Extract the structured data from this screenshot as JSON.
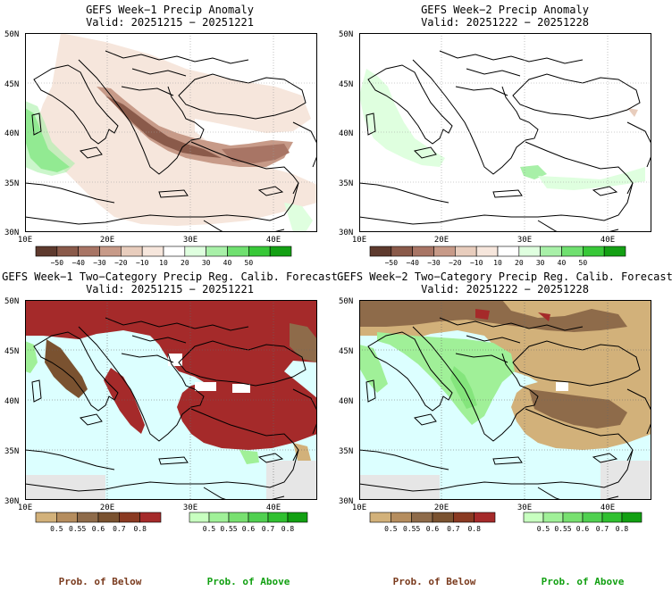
{
  "panels": [
    {
      "title": "GEFS Week−1 Precip Anomaly",
      "valid": "Valid: 20251215 − 20251221",
      "type": "anomaly",
      "lat_labels": [
        "50N",
        "45N",
        "40N",
        "35N",
        "30N"
      ],
      "lon_labels": [
        "10E",
        "20E",
        "30E",
        "40E"
      ]
    },
    {
      "title": "GEFS Week−2 Precip Anomaly",
      "valid": "Valid: 20251222 − 20251228",
      "type": "anomaly",
      "lat_labels": [
        "50N",
        "45N",
        "40N",
        "35N",
        "30N"
      ],
      "lon_labels": [
        "10E",
        "20E",
        "30E",
        "40E"
      ]
    },
    {
      "title": "GEFS Week−1 Two−Category Precip Reg. Calib. Forecast",
      "valid": "Valid: 20251215 − 20251221",
      "type": "prob",
      "lat_labels": [
        "50N",
        "45N",
        "40N",
        "35N",
        "30N"
      ],
      "lon_labels": [
        "10E",
        "20E",
        "30E",
        "40E"
      ]
    },
    {
      "title": "GEFS Week−2 Two−Category Precip Reg. Calib. Forecast",
      "valid": "Valid: 20251222 − 20251228",
      "type": "prob",
      "lat_labels": [
        "50N",
        "45N",
        "40N",
        "35N",
        "30N"
      ],
      "lon_labels": [
        "10E",
        "20E",
        "30E",
        "40E"
      ]
    }
  ],
  "anomaly_colorbar": {
    "labels": [
      "−50",
      "−40",
      "−30",
      "−20",
      "−10",
      "10",
      "20",
      "30",
      "40",
      "50"
    ],
    "colors": [
      "#5e3a2e",
      "#8a5a4a",
      "#a87565",
      "#c79a88",
      "#e8cdbd",
      "#f6e6dc",
      "#ffffff",
      "#dfffdf",
      "#a8f0a8",
      "#70e070",
      "#38c838",
      "#14a014"
    ]
  },
  "prob_below_colorbar": {
    "labels": [
      "0.5",
      "0.55",
      "0.6",
      "0.7",
      "0.8"
    ],
    "colors": [
      "#d2b17a",
      "#b58d5e",
      "#8e6b4a",
      "#7a5230",
      "#8a3a22",
      "#a52a2a"
    ]
  },
  "prob_above_colorbar": {
    "labels": [
      "0.5",
      "0.55",
      "0.6",
      "0.7",
      "0.8"
    ],
    "colors": [
      "#c8ffc0",
      "#a0f098",
      "#78e070",
      "#50d050",
      "#30c030",
      "#12a012"
    ]
  },
  "footer": {
    "below_label": "Prob. of Below",
    "above_label": "Prob. of Above"
  },
  "colors": {
    "sea": "#dcffff",
    "land_below_strong": "#a52a2a",
    "land_below_med": "#8e6b4a",
    "land_below_light": "#d2b17a",
    "land_above": "#a0f098",
    "no_data": "#e6e6e6",
    "below_text": "#7a3b1e",
    "above_text": "#12a012"
  }
}
